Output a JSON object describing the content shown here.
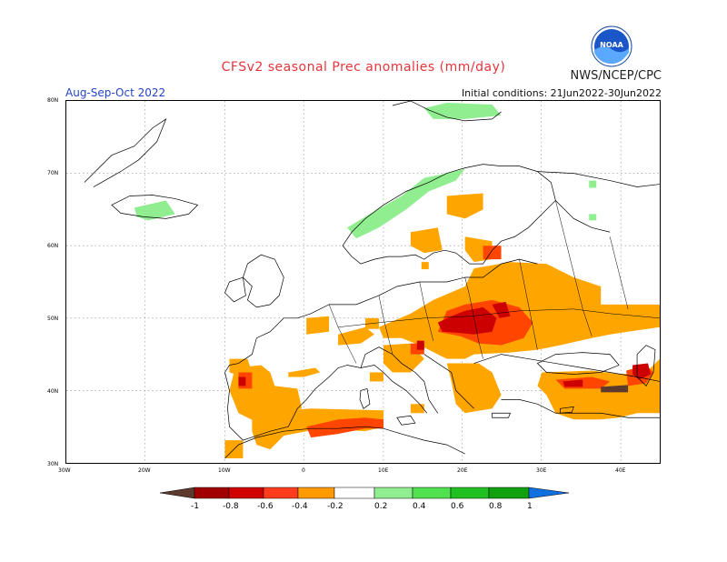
{
  "title": "CFSv2 seasonal Prec anomalies (mm/day)",
  "agency": "NWS/NCEP/CPC",
  "logo_text": "NOAA",
  "period": "Aug-Sep-Oct 2022",
  "initial_conditions": "Initial conditions: 21Jun2022-30Jun2022",
  "lat_ticks": [
    "80N",
    "70N",
    "60N",
    "50N",
    "40N",
    "30N"
  ],
  "lon_ticks": [
    "30W",
    "20W",
    "10W",
    "0",
    "10E",
    "20E",
    "30E",
    "40E"
  ],
  "colorbar": {
    "labels": [
      "-1",
      "-0.8",
      "-0.6",
      "-0.4",
      "-0.2",
      "0.2",
      "0.4",
      "0.6",
      "0.8",
      "1"
    ],
    "colors": [
      "#5c3a2e",
      "#a00000",
      "#d00000",
      "#ff3c1e",
      "#ff9a00",
      "#ffffff",
      "#90ee90",
      "#50e050",
      "#20c020",
      "#10a010",
      "#1070e0"
    ]
  },
  "colors": {
    "title": "#e8333b",
    "period": "#2444c4",
    "dry_light": "#ffa500",
    "dry_medium": "#ff4500",
    "dry_strong": "#cc0000",
    "dry_extreme": "#5c3a2e",
    "wet_light": "#90ee90"
  }
}
